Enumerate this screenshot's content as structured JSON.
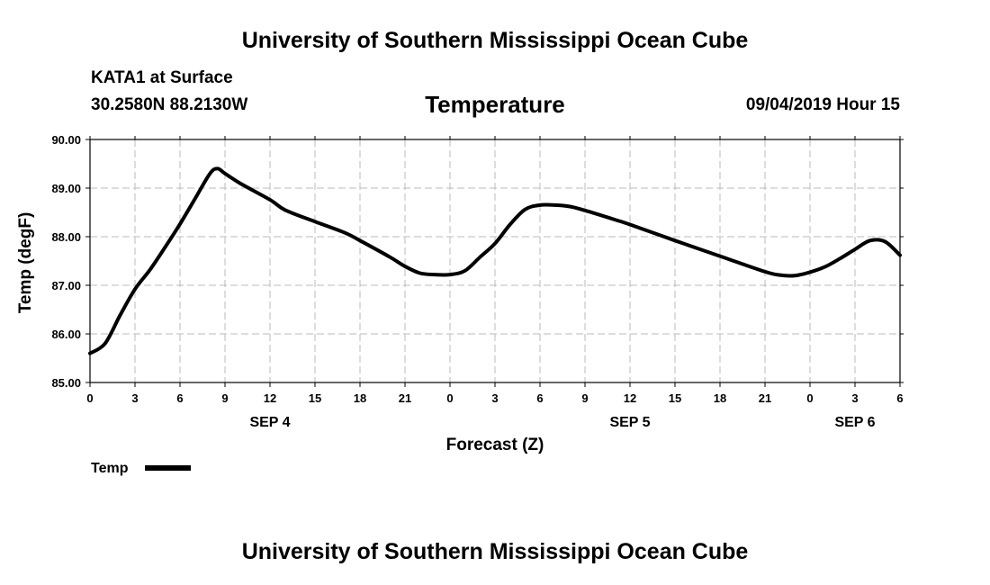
{
  "header": {
    "top_title": "University of Southern Mississippi Ocean Cube",
    "station": "KATA1 at Surface",
    "coords": "30.2580N 88.2130W",
    "datestamp": "09/04/2019 Hour 15",
    "bottom_title": "University of Southern Mississippi Ocean Cube"
  },
  "chart_data": {
    "type": "line",
    "title": "Temperature",
    "xlabel": "Forecast (Z)",
    "ylabel": "Temp (degF)",
    "ylim": [
      85.0,
      90.0
    ],
    "yticks": [
      "85.00",
      "86.00",
      "87.00",
      "88.00",
      "89.00",
      "90.00"
    ],
    "xlim": [
      "09/04/2019 00Z",
      "09/06/2019 06Z"
    ],
    "xtick_hours": [
      "0",
      "3",
      "6",
      "9",
      "12",
      "15",
      "18",
      "21",
      "0",
      "3",
      "6",
      "9",
      "12",
      "15",
      "18",
      "21",
      "0",
      "3",
      "6"
    ],
    "day_labels": [
      {
        "label": "SEP 4",
        "at_hour": "12"
      },
      {
        "label": "SEP 5",
        "at_hour": "12"
      },
      {
        "label": "SEP 6",
        "at_hour": "3"
      }
    ],
    "grid": true,
    "legend": {
      "position": "bottom-left",
      "entries": [
        "Temp"
      ]
    },
    "line_color": "#000000",
    "series": [
      {
        "name": "Temp",
        "x": [
          "09/04 00Z",
          "09/04 01Z",
          "09/04 02Z",
          "09/04 03Z",
          "09/04 04Z",
          "09/04 05Z",
          "09/04 06Z",
          "09/04 07Z",
          "09/04 08Z",
          "09/04 08:30Z",
          "09/04 09Z",
          "09/04 10Z",
          "09/04 12Z",
          "09/04 13Z",
          "09/04 15Z",
          "09/04 17Z",
          "09/04 18Z",
          "09/04 20Z",
          "09/04 21Z",
          "09/04 22Z",
          "09/04 23Z",
          "09/05 00Z",
          "09/05 01Z",
          "09/05 02Z",
          "09/05 03Z",
          "09/05 04Z",
          "09/05 05Z",
          "09/05 06Z",
          "09/05 07Z",
          "09/05 08Z",
          "09/05 09Z",
          "09/05 11Z",
          "09/05 12Z",
          "09/05 15Z",
          "09/05 18Z",
          "09/05 21Z",
          "09/05 22Z",
          "09/05 23Z",
          "09/06 00Z",
          "09/06 01Z",
          "09/06 02Z",
          "09/06 03Z",
          "09/06 04Z",
          "09/06 05Z",
          "09/06 06Z"
        ],
        "values": [
          85.6,
          85.8,
          86.38,
          86.92,
          87.32,
          87.78,
          88.26,
          88.78,
          89.3,
          89.4,
          89.3,
          89.1,
          88.76,
          88.55,
          88.31,
          88.08,
          87.92,
          87.58,
          87.39,
          87.25,
          87.22,
          87.22,
          87.3,
          87.58,
          87.86,
          88.25,
          88.56,
          88.65,
          88.65,
          88.62,
          88.54,
          88.35,
          88.25,
          87.92,
          87.6,
          87.28,
          87.21,
          87.2,
          87.27,
          87.38,
          87.55,
          87.74,
          87.92,
          87.9,
          87.62
        ]
      }
    ]
  }
}
